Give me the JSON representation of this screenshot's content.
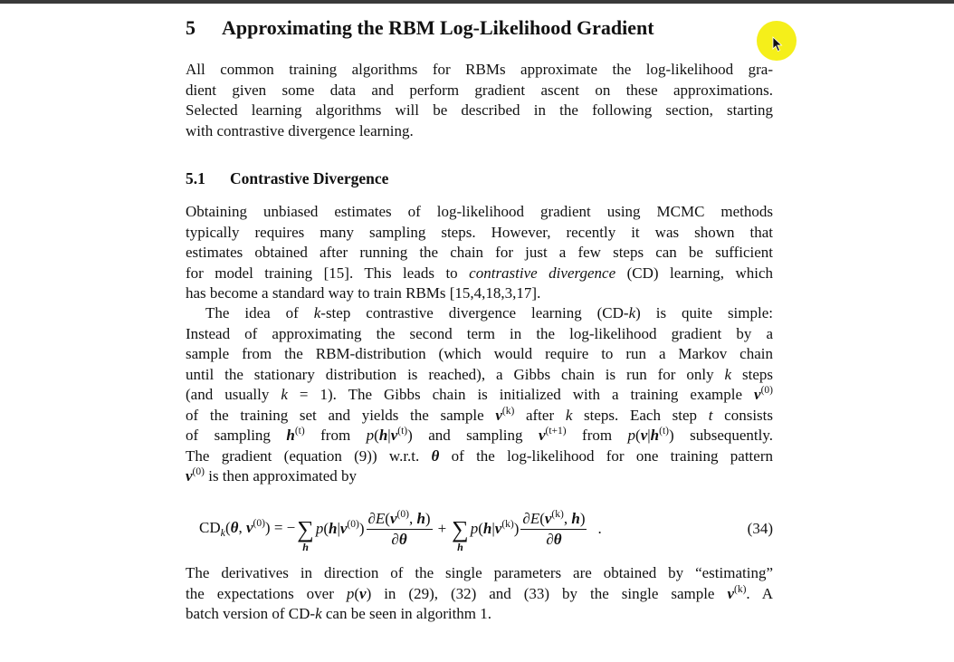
{
  "section": {
    "number": "5",
    "title": "Approximating the RBM Log-Likelihood Gradient"
  },
  "subsection": {
    "number": "5.1",
    "title": "Contrastive Divergence"
  },
  "paragraphs": {
    "p1": [
      {
        "segs": [
          "All common training algorithms for RBMs approximate the log-likelihood gra-"
        ]
      },
      {
        "segs": [
          "dient given some data and perform gradient ascent on these approximations."
        ]
      },
      {
        "segs": [
          "Selected learning algorithms will be described in the following section, starting"
        ]
      },
      {
        "segs": [
          "with contrastive divergence learning."
        ],
        "last": true
      }
    ],
    "p2": [
      {
        "segs": [
          "Obtaining unbiased estimates of log-likelihood gradient using MCMC methods"
        ]
      },
      {
        "segs": [
          "typically requires many sampling steps. However, recently it was shown that"
        ]
      },
      {
        "segs": [
          "estimates obtained after running the chain for just a few steps can be sufficient"
        ]
      },
      {
        "segs": [
          "for model training [15]. This leads to ",
          [
            "contrastive divergence",
            "i"
          ],
          " (CD) learning, which"
        ]
      },
      {
        "segs": [
          "has become a standard way to train RBMs [15,4,18,3,17]."
        ],
        "last": true
      }
    ],
    "p3": [
      {
        "segs": [
          "The idea of ",
          [
            "k",
            "i"
          ],
          "-step contrastive divergence learning (CD-",
          [
            "k",
            "i"
          ],
          ") is quite simple:"
        ],
        "indent": true
      },
      {
        "segs": [
          "Instead of approximating the second term in the log-likelihood gradient by a"
        ]
      },
      {
        "segs": [
          "sample from the RBM-distribution (which would require to run a Markov chain"
        ]
      },
      {
        "segs": [
          "until the stationary distribution is reached), a Gibbs chain is run for only ",
          [
            "k",
            "i"
          ],
          " steps"
        ]
      },
      {
        "segs": [
          "(and usually ",
          [
            "k",
            "i"
          ],
          " = 1). The Gibbs chain is initialized with a training example ",
          [
            "v",
            "bi"
          ],
          [
            "(0)",
            "sup"
          ]
        ]
      },
      {
        "segs": [
          "of the training set and yields the sample ",
          [
            "v",
            "bi"
          ],
          [
            "(k)",
            "sup"
          ],
          " after ",
          [
            "k",
            "i"
          ],
          " steps. Each step ",
          [
            "t",
            "i"
          ],
          " consists"
        ]
      },
      {
        "segs": [
          "of sampling ",
          [
            "h",
            "bi"
          ],
          [
            "(t)",
            "sup"
          ],
          " from ",
          [
            "p",
            "i"
          ],
          "(",
          [
            "h",
            "bi"
          ],
          "|",
          [
            "v",
            "bi"
          ],
          [
            "(t)",
            "sup"
          ],
          ") and sampling ",
          [
            "v",
            "bi"
          ],
          [
            "(t+1)",
            "sup"
          ],
          " from ",
          [
            "p",
            "i"
          ],
          "(",
          [
            "v",
            "bi"
          ],
          "|",
          [
            "h",
            "bi"
          ],
          [
            "(t)",
            "sup"
          ],
          ") subsequently."
        ]
      },
      {
        "segs": [
          "The gradient (equation (9)) w.r.t. ",
          [
            "θ",
            "bi"
          ],
          " of the log-likelihood for one training pattern"
        ]
      },
      {
        "segs": [
          [
            "v",
            "bi"
          ],
          [
            "(0)",
            "sup"
          ],
          " is then approximated by"
        ],
        "last": true
      }
    ],
    "p4": [
      {
        "segs": [
          "The derivatives in direction of the single parameters are obtained by “estimating”"
        ]
      },
      {
        "segs": [
          "the expectations over ",
          [
            "p",
            "i"
          ],
          "(",
          [
            "v",
            "bi"
          ],
          ") in (29), (32) and (33) by the single sample ",
          [
            "v",
            "bi"
          ],
          [
            "(k)",
            "sup"
          ],
          ". A"
        ]
      },
      {
        "segs": [
          "batch version of CD-",
          [
            "k",
            "i"
          ],
          " can be seen in algorithm 1."
        ],
        "last": true
      }
    ]
  },
  "equation": {
    "lhs": [
      [
        "CD",
        ""
      ],
      [
        "k",
        "sub"
      ],
      [
        "(",
        ""
      ],
      [
        "θ",
        "bi"
      ],
      [
        ", ",
        ""
      ],
      [
        "v",
        "bi"
      ],
      [
        "(0)",
        "sup"
      ],
      [
        ") = −",
        ""
      ]
    ],
    "sum_symbol": "∑",
    "sum_index": "h",
    "term1": [
      [
        "p",
        "i"
      ],
      [
        "(",
        ""
      ],
      [
        "h",
        "bi"
      ],
      [
        "|",
        ""
      ],
      [
        "v",
        "bi"
      ],
      [
        "(0)",
        "sup"
      ],
      [
        ")",
        ""
      ]
    ],
    "num1": [
      [
        "∂",
        ""
      ],
      [
        "E",
        "i"
      ],
      [
        "(",
        ""
      ],
      [
        "v",
        "bi"
      ],
      [
        "(0)",
        "sup"
      ],
      [
        ", ",
        ""
      ],
      [
        "h",
        "bi"
      ],
      [
        ")",
        ""
      ]
    ],
    "den": [
      [
        "∂",
        ""
      ],
      [
        "θ",
        "bi"
      ]
    ],
    "plus": "+",
    "term2": [
      [
        "p",
        "i"
      ],
      [
        "(",
        ""
      ],
      [
        "h",
        "bi"
      ],
      [
        "|",
        ""
      ],
      [
        "v",
        "bi"
      ],
      [
        "(k)",
        "sup"
      ],
      [
        ")",
        ""
      ]
    ],
    "num2": [
      [
        "∂",
        ""
      ],
      [
        "E",
        "i"
      ],
      [
        "(",
        ""
      ],
      [
        "v",
        "bi"
      ],
      [
        "(k)",
        "sup"
      ],
      [
        ", ",
        ""
      ],
      [
        "h",
        "bi"
      ],
      [
        ")",
        ""
      ]
    ],
    "period": ".",
    "number": "(34)"
  },
  "cursor": {
    "highlight_color": "#f5ef1a",
    "icon": "pointer-arrow-icon"
  }
}
